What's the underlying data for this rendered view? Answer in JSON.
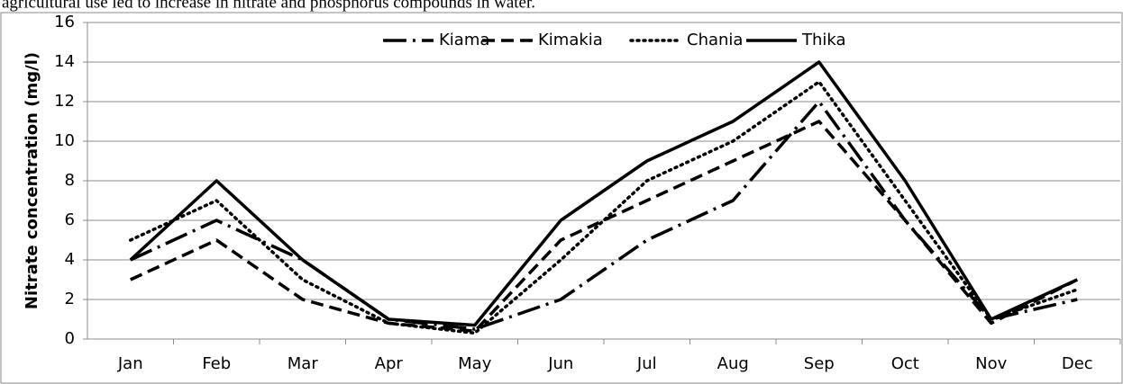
{
  "caption": "agricultural use led to increase in nitrate and phosphorus compounds in water.",
  "chart_data": {
    "type": "line",
    "y_label": "Nitrate concentration (mg/l)",
    "categories": [
      "Jan",
      "Feb",
      "Mar",
      "Apr",
      "May",
      "Jun",
      "Jul",
      "Aug",
      "Sep",
      "Oct",
      "Nov",
      "Dec"
    ],
    "series": [
      {
        "name": "Kiama",
        "color": "#000000",
        "dash": "long-dash-dot",
        "values": [
          4,
          6,
          4,
          1,
          0.5,
          2,
          5,
          7,
          12,
          6,
          1,
          2
        ]
      },
      {
        "name": "Kimakia",
        "color": "#000000",
        "dash": "dash",
        "values": [
          3,
          5,
          2,
          0.8,
          0.4,
          5,
          7,
          9,
          11,
          6,
          0.8,
          3
        ]
      },
      {
        "name": "Chania",
        "color": "#000000",
        "dash": "dot",
        "values": [
          5,
          7,
          3,
          0.8,
          0.3,
          4,
          8,
          10,
          13,
          7,
          1,
          2.5
        ]
      },
      {
        "name": "Thika",
        "color": "#000000",
        "dash": "solid",
        "values": [
          4,
          8,
          4,
          1,
          0.7,
          6,
          9,
          11,
          14,
          8,
          1,
          3
        ]
      }
    ],
    "ylim": [
      0,
      16
    ],
    "yticks": [
      0,
      2,
      4,
      6,
      8,
      10,
      12,
      14,
      16
    ],
    "grid": true,
    "legend": "top"
  }
}
